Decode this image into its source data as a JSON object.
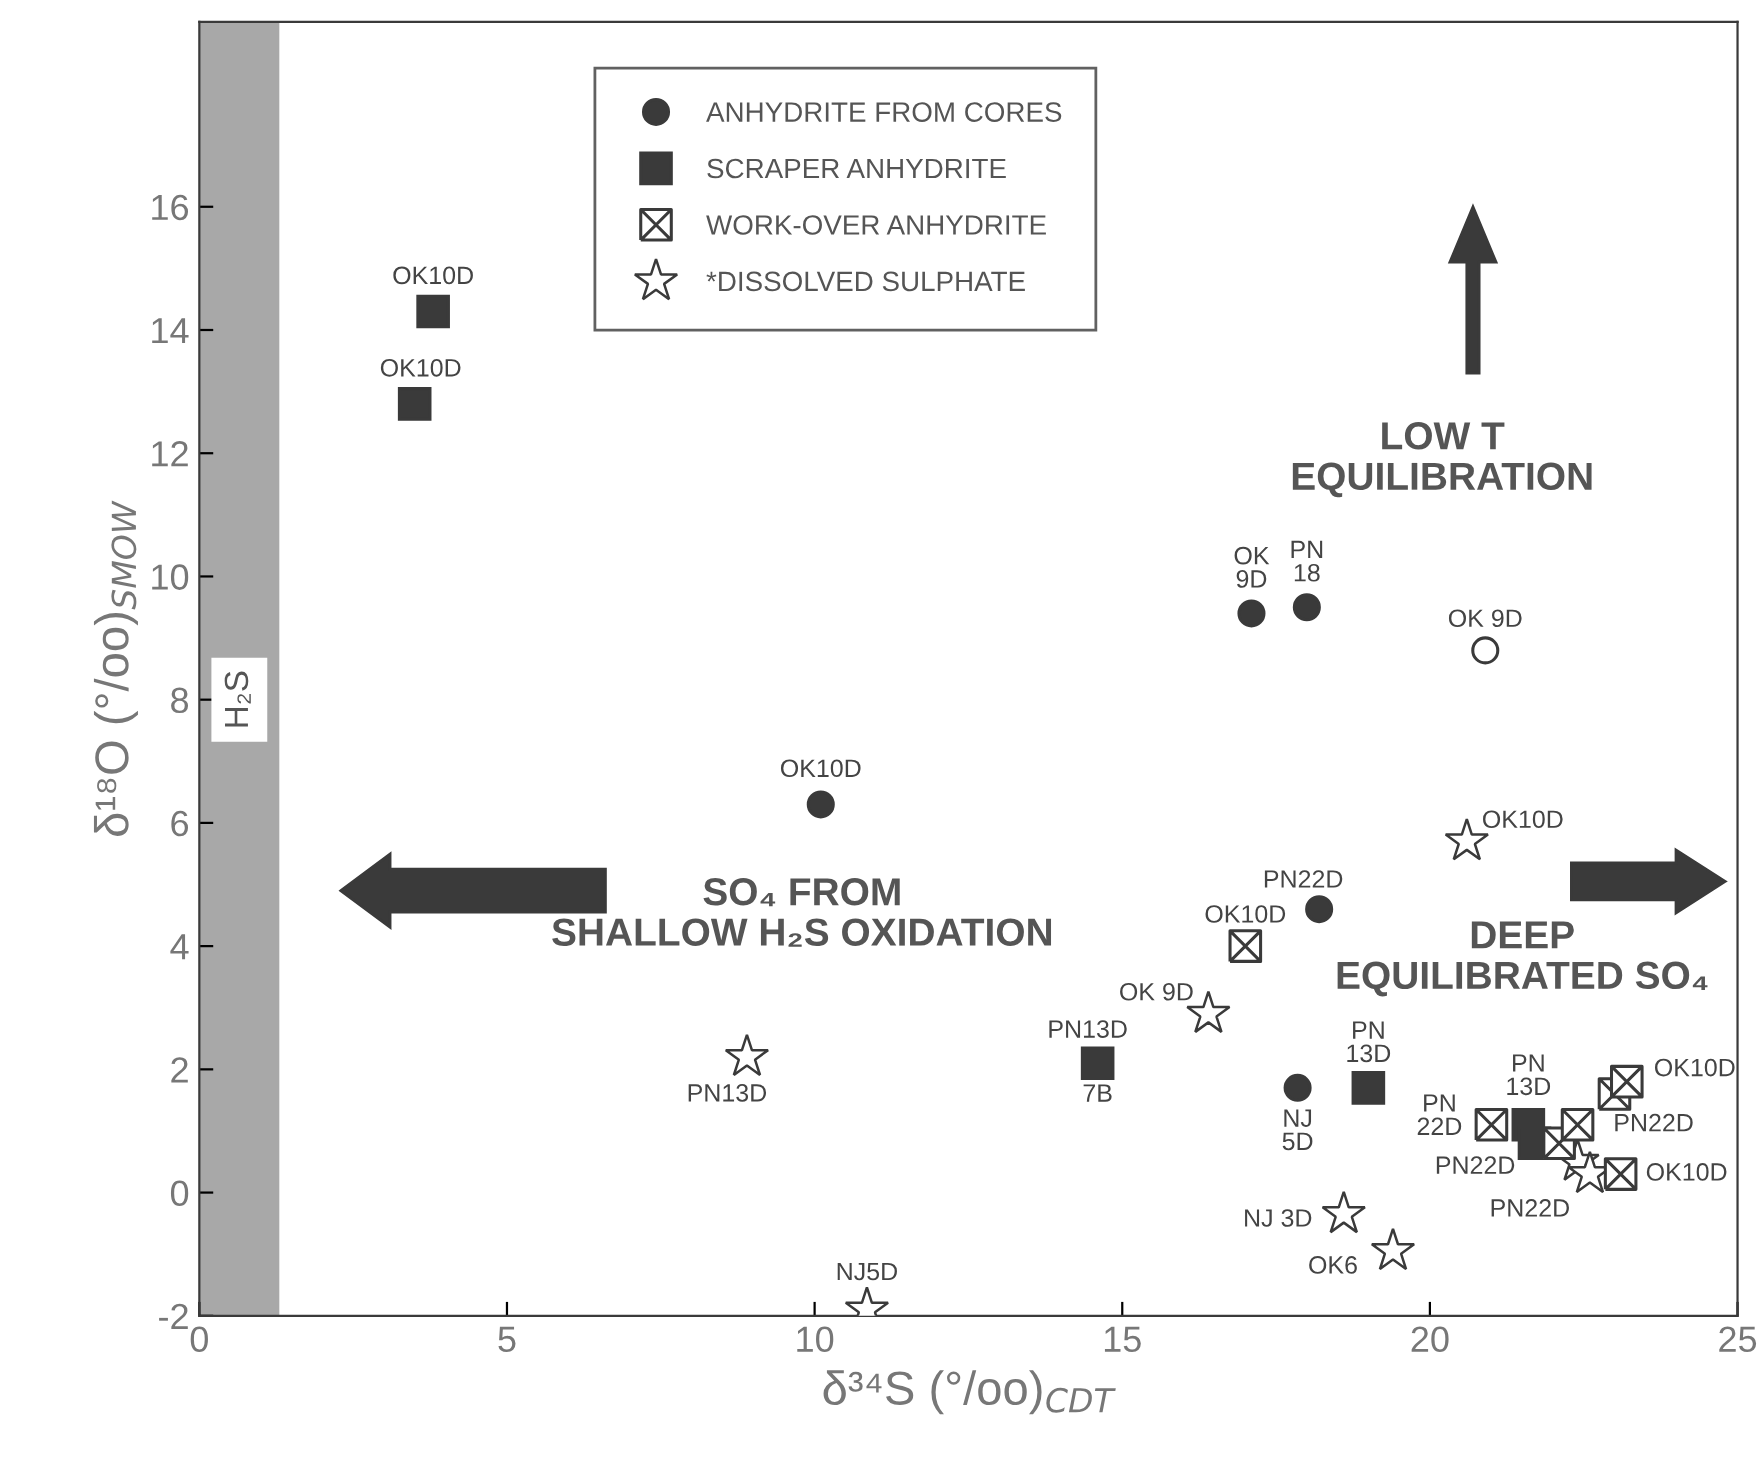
{
  "chart_data": {
    "type": "scatter",
    "xlabel": "δ³⁴S (°/oo)$_{CDT}$",
    "ylabel": "δ¹⁸O (°/oo)$_{SMOW}$",
    "xlim": [
      0,
      25
    ],
    "ylim": [
      -2,
      19
    ],
    "xticks": [
      0,
      5,
      10,
      15,
      20,
      25
    ],
    "yticks": [
      -2,
      0,
      2,
      4,
      6,
      8,
      10,
      12,
      14,
      16
    ],
    "grid": false,
    "legend": "top",
    "series": [
      {
        "name": "ANHYDRITE FROM CORES",
        "marker": "circle",
        "color": "#3a3a3a",
        "x": [
          10.1,
          17.1,
          18.0,
          18.2,
          17.85
        ],
        "values": [
          6.3,
          9.4,
          9.5,
          4.6,
          1.7
        ]
      },
      {
        "name": "SCRAPER ANHYDRITE",
        "marker": "square",
        "color": "#3a3a3a",
        "x": [
          3.8,
          3.5,
          14.6,
          19.0,
          21.6,
          21.7
        ],
        "values": [
          14.3,
          12.8,
          2.1,
          1.7,
          1.1,
          0.8
        ]
      },
      {
        "name": "WORK-OVER ANHYDRITE",
        "marker": "cross",
        "color": "#ffffff",
        "x": [
          17.0,
          21.0,
          22.1,
          22.4,
          23.0,
          23.2,
          23.1
        ],
        "values": [
          4.0,
          1.1,
          0.8,
          1.1,
          1.6,
          1.8,
          0.3
        ]
      },
      {
        "name": "*DISSOLVED SULPHATE",
        "marker": "star",
        "color": "#ffffff",
        "x": [
          20.6,
          16.4,
          8.9,
          10.85,
          18.6,
          19.4,
          22.4,
          22.6
        ],
        "values": [
          5.7,
          2.9,
          2.2,
          -1.9,
          -0.35,
          -0.95,
          0.5,
          0.3
        ]
      },
      {
        "marker": "circle",
        "color": "#ffffff",
        "x": [
          20.9
        ],
        "values": [
          8.8
        ]
      }
    ],
    "bands": [
      {
        "axis": "x",
        "from": 0,
        "to": 1.3,
        "label": "H₂S",
        "color": "#a8a8a8"
      }
    ],
    "annotations": [
      {
        "text": "OK10D",
        "x": 3.8,
        "y": 14.3
      },
      {
        "text": "OK10D",
        "x": 3.5,
        "y": 12.8
      },
      {
        "text": "OK10D",
        "x": 10.1,
        "y": 6.3
      },
      {
        "text": "OK\n9D",
        "x": 17.1,
        "y": 9.4
      },
      {
        "text": "PN\n18",
        "x": 18.0,
        "y": 9.5
      },
      {
        "text": "OK 9D",
        "x": 20.9,
        "y": 8.8
      },
      {
        "text": "OK10D",
        "x": 20.6,
        "y": 5.7
      },
      {
        "text": "PN22D",
        "x": 18.2,
        "y": 4.6
      },
      {
        "text": "OK10D",
        "x": 17.0,
        "y": 4.0
      },
      {
        "text": "OK 9D",
        "x": 16.4,
        "y": 2.9
      },
      {
        "text": "PN13D",
        "x": 14.6,
        "y": 2.1
      },
      {
        "text": "7B",
        "x": 14.6,
        "y": 2.1
      },
      {
        "text": "PN13D",
        "x": 8.9,
        "y": 2.2
      },
      {
        "text": "PN\n13D",
        "x": 19.0,
        "y": 1.7
      },
      {
        "text": "NJ\n5D",
        "x": 17.85,
        "y": 1.7
      },
      {
        "text": "PN\n13D",
        "x": 21.6,
        "y": 1.1
      },
      {
        "text": "PN\n22D",
        "x": 21.0,
        "y": 1.1
      },
      {
        "text": "PN22D",
        "x": 22.1,
        "y": 0.8
      },
      {
        "text": "PN22D",
        "x": 22.4,
        "y": 1.1
      },
      {
        "text": "OK10D",
        "x": 23.2,
        "y": 1.8
      },
      {
        "text": "OK10D",
        "x": 23.1,
        "y": 0.3
      },
      {
        "text": "PN22D",
        "x": 22.6,
        "y": 0.3
      },
      {
        "text": "NJ 3D",
        "x": 18.6,
        "y": -0.35
      },
      {
        "text": "OK6",
        "x": 19.4,
        "y": -0.95
      },
      {
        "text": "NJ5D",
        "x": 10.85,
        "y": -1.9
      },
      "SO₄ FROM\nSHALLOW H₂S OXIDATION",
      "LOW T\nEQUILIBRATION",
      "DEEP\nEQUILIBRATED SO₄"
    ]
  }
}
